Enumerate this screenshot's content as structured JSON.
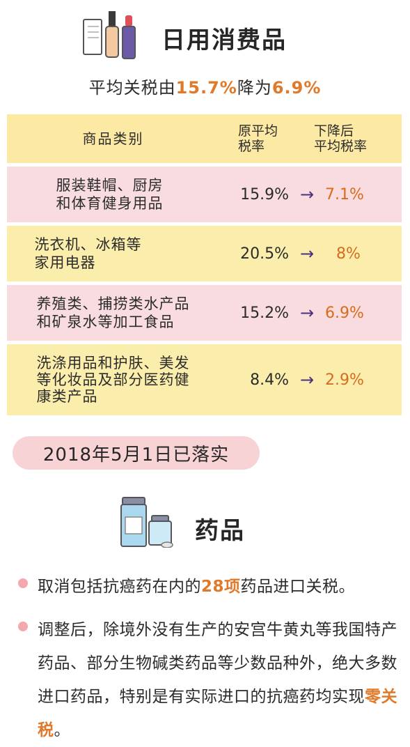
{
  "section1": {
    "title": "日用消费品",
    "subtitle_prefix": "平均关税由",
    "subtitle_from": "15.7%",
    "subtitle_mid": "降为",
    "subtitle_to": "6.9%"
  },
  "table": {
    "headers": [
      "商品类别",
      "原平均\n税率",
      "下降后\n平均税率"
    ],
    "rows": [
      {
        "category": "服装鞋帽、厨房\n和体育健身用品",
        "old_rate": "15.9%",
        "new_rate": "7.1%"
      },
      {
        "category": "洗衣机、冰箱等\n家用电器",
        "old_rate": "20.5%",
        "new_rate": "8%"
      },
      {
        "category": "养殖类、捕捞类水产品\n和矿泉水等加工食品",
        "old_rate": "15.2%",
        "new_rate": "6.9%"
      },
      {
        "category": "洗涤用品和护肤、美发\n等化妆品及部分医药健\n康类产品",
        "old_rate": "8.4%",
        "new_rate": "2.9%"
      }
    ],
    "arrow": "→"
  },
  "date_badge": "2018年5月1日已落实",
  "section2": {
    "title": "药品",
    "bullet1_pre": "取消包括抗癌药在内的",
    "bullet1_hl": "28项",
    "bullet1_post": "药品进口关税。",
    "bullet2_pre": "调整后，除境外没有生产的安宫牛黄丸等我国特产药品、部分生物碱类药品等少数品种外，绝大多数进口药品，特别是有实际进口的抗癌药均实现",
    "bullet2_hl": "零关税",
    "bullet2_post": "。"
  },
  "colors": {
    "highlight": "#e07a2a",
    "arrow": "#4b2f7a",
    "pink_row": "#f9dce0",
    "yellow_row": "#fbeeac",
    "date_badge_bg": "#f8d3d6",
    "bullet_dot": "#f3a8ad"
  },
  "icons": [
    "cosmetics-icon",
    "medicine-bottles-icon",
    "arrow-icon",
    "bullet-dot-icon"
  ]
}
